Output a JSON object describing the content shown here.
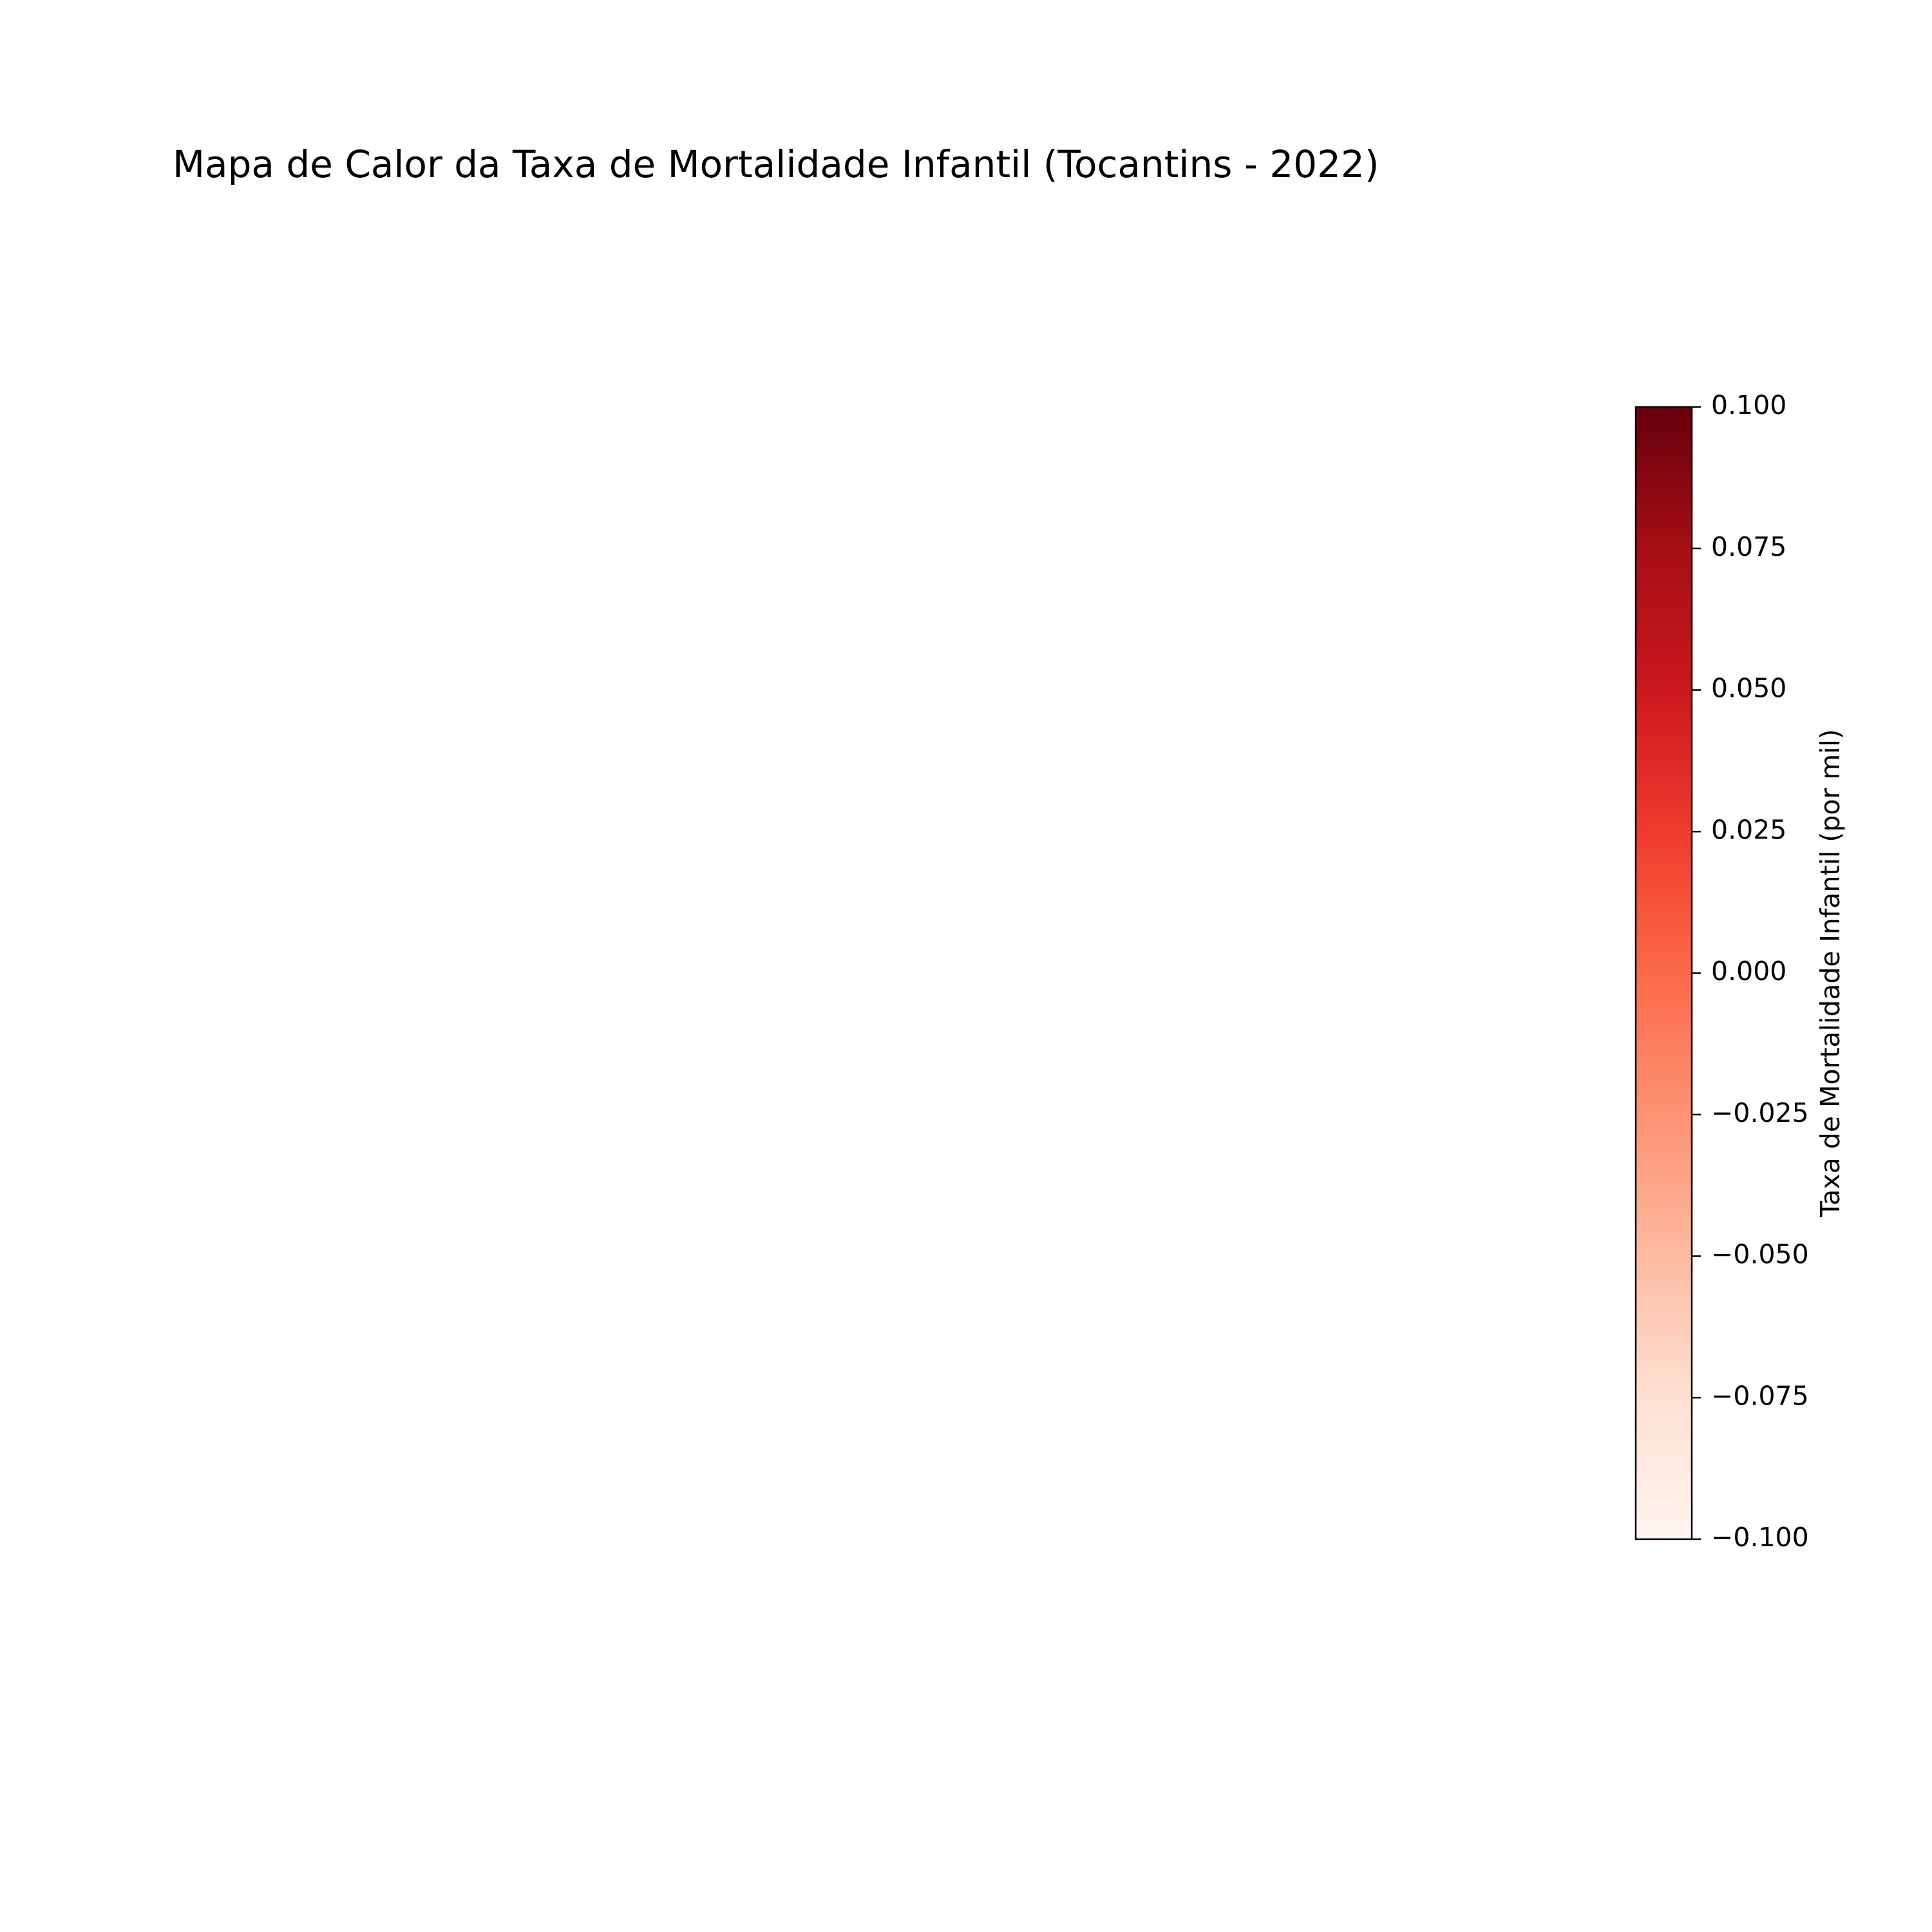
{
  "chart_data": {
    "type": "heatmap",
    "title": "Mapa de Calor da Taxa de Mortalidade Infantil (Tocantins - 2022)",
    "map_regions": [],
    "axes_visible": false,
    "colorbar": {
      "label": "Taxa de Mortalidade Infantil (por mil)",
      "colormap": "Reds",
      "range": [
        -0.1,
        0.1
      ],
      "orientation": "vertical",
      "placement": "right",
      "ticks": [
        0.1,
        0.075,
        0.05,
        0.025,
        0.0,
        -0.025,
        -0.05,
        -0.075,
        -0.1
      ],
      "tick_labels": [
        "0.100",
        "0.075",
        "0.050",
        "0.025",
        "0.000",
        "−0.025",
        "−0.050",
        "−0.075",
        "−0.100"
      ],
      "color_stops": [
        "#fff5f0",
        "#fee0d2",
        "#fcbba1",
        "#fc9272",
        "#fb6a4a",
        "#ef3b2c",
        "#cb181d",
        "#a50f15",
        "#67000d"
      ]
    }
  }
}
